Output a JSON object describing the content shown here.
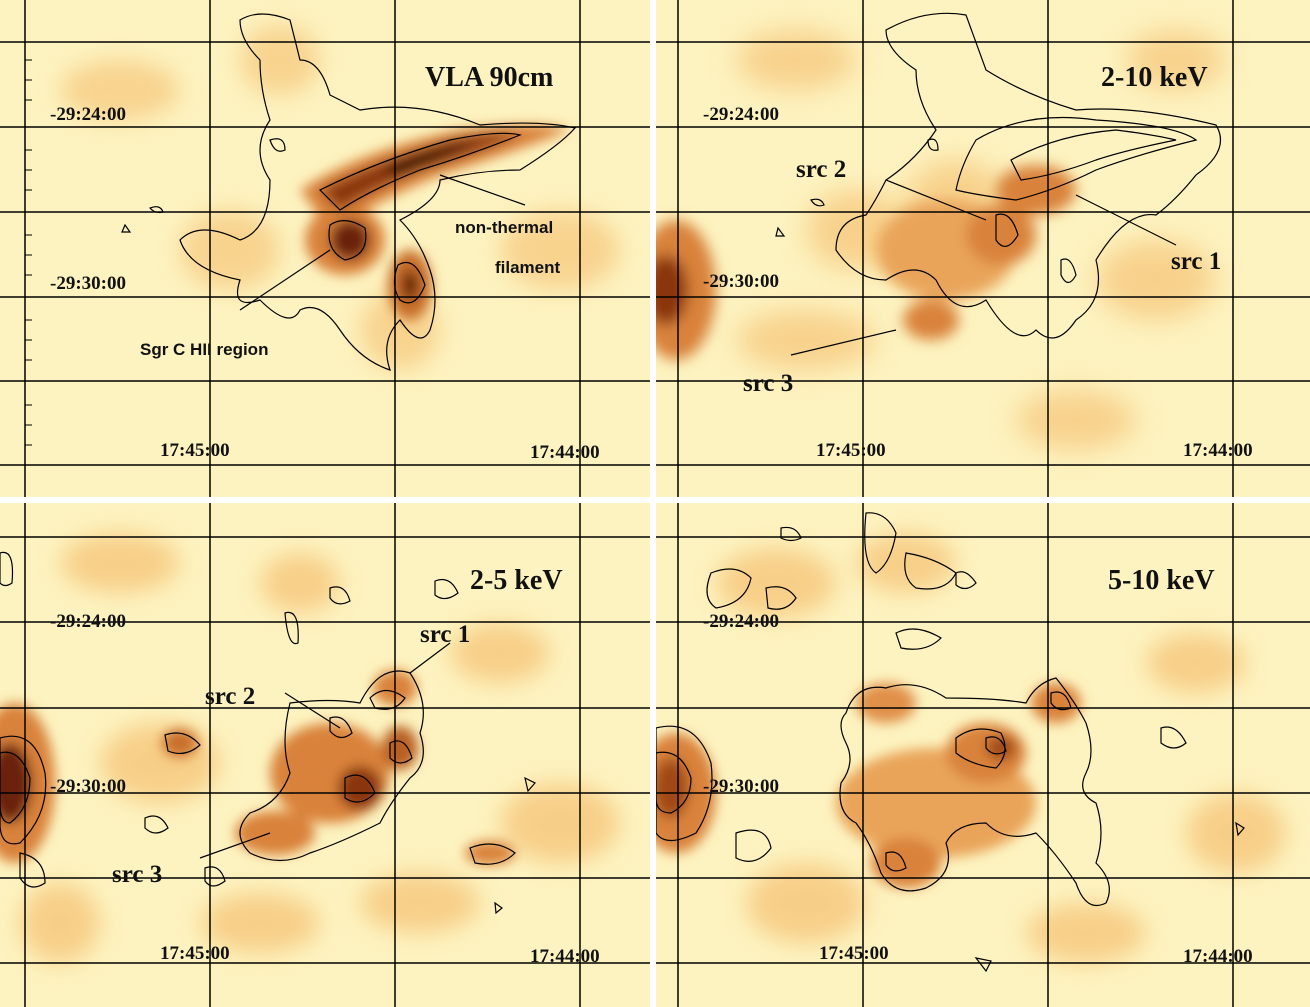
{
  "panels": [
    {
      "title": "VLA 90cm",
      "dec_top": "-29:24:00",
      "dec_bottom": "-29:30:00",
      "ra_left": "17:45:00",
      "ra_right": "17:44:00",
      "annotations": [
        "non-thermal",
        "filament",
        "Sgr C HII region"
      ]
    },
    {
      "title": "2-10 keV",
      "dec_top": "-29:24:00",
      "dec_bottom": "-29:30:00",
      "ra_left": "17:45:00",
      "ra_right": "17:44:00",
      "annotations": [
        "src 2",
        "src 1",
        "src 3"
      ]
    },
    {
      "title": "2-5 keV",
      "dec_top": "-29:24:00",
      "dec_bottom": "-29:30:00",
      "ra_left": "17:45:00",
      "ra_right": "17:44:00",
      "annotations": [
        "src 1",
        "src 2",
        "src 3"
      ]
    },
    {
      "title": "5-10 keV",
      "dec_top": "-29:24:00",
      "dec_bottom": "-29:30:00",
      "ra_left": "17:45:00",
      "ra_right": "17:44:00",
      "annotations": []
    }
  ],
  "colors": {
    "background": "#fdf3c0",
    "emission_light": "#f6c67a",
    "emission_mid": "#d9823a",
    "emission_dark": "#8a3410",
    "emission_peak": "#2a0a04",
    "grid": "#000000"
  }
}
